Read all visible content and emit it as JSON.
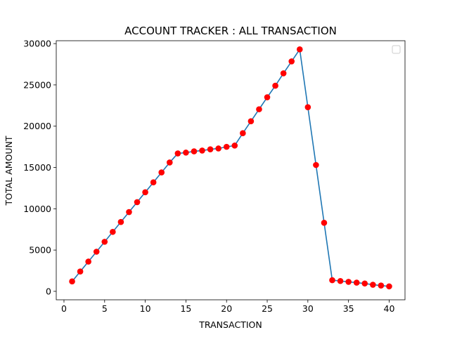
{
  "chart_data": {
    "type": "line",
    "title": "ACCOUNT TRACKER : ALL TRANSACTION",
    "xlabel": "TRANSACTION",
    "ylabel": "TOTAL AMOUNT",
    "xlim": [
      -0.95,
      41.95
    ],
    "ylim": [
      -1025,
      30350
    ],
    "xticks": [
      0,
      5,
      10,
      15,
      20,
      25,
      30,
      35,
      40
    ],
    "yticks": [
      0,
      5000,
      10000,
      15000,
      20000,
      25000,
      30000
    ],
    "grid": false,
    "legend": "top-right (empty)",
    "line_color": "#1f77b4",
    "marker_color": "#ff0000",
    "x": [
      1,
      2,
      3,
      4,
      5,
      6,
      7,
      8,
      9,
      10,
      11,
      12,
      13,
      14,
      15,
      16,
      17,
      18,
      19,
      20,
      21,
      22,
      23,
      24,
      25,
      26,
      27,
      28,
      29,
      30,
      31,
      32,
      33,
      34,
      35,
      36,
      37,
      38,
      39,
      40
    ],
    "values": [
      1200,
      2400,
      3600,
      4800,
      6000,
      7200,
      8400,
      9600,
      10800,
      12000,
      13200,
      14400,
      15600,
      16700,
      16800,
      16950,
      17050,
      17200,
      17300,
      17500,
      17650,
      19150,
      20600,
      22050,
      23500,
      24900,
      26400,
      27850,
      29300,
      22300,
      15300,
      8300,
      1350,
      1250,
      1150,
      1050,
      950,
      800,
      700,
      600
    ]
  }
}
